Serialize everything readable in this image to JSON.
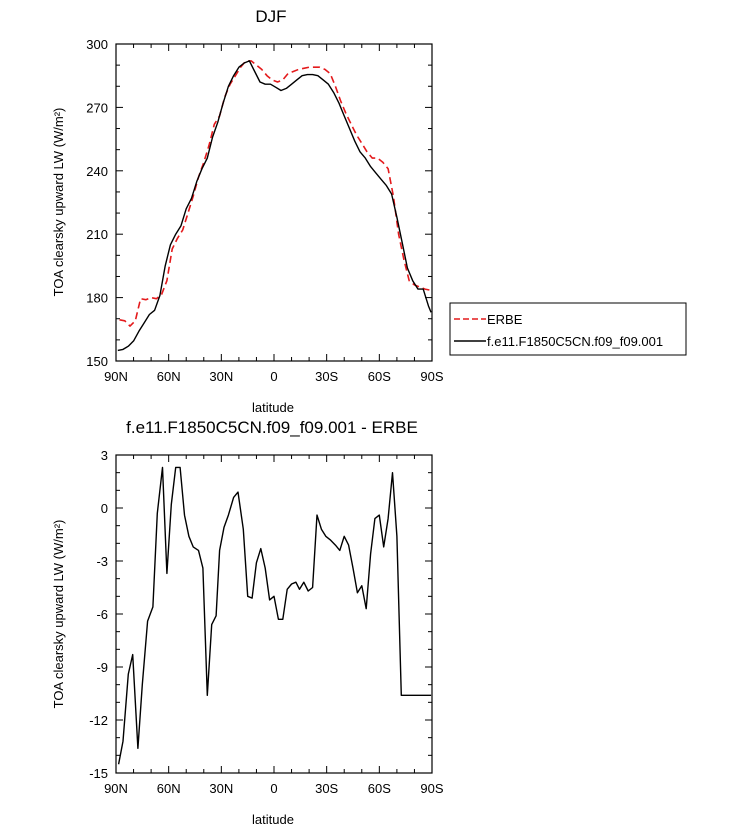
{
  "chart_data": [
    {
      "type": "line",
      "title": "DJF",
      "xlabel": "latitude",
      "ylabel": "TOA clearsky upward LW (W/m²)",
      "x_ticks": [
        {
          "value": -90,
          "label": "90N"
        },
        {
          "value": -60,
          "label": "60N"
        },
        {
          "value": -30,
          "label": "30N"
        },
        {
          "value": 0,
          "label": "0"
        },
        {
          "value": 30,
          "label": "30S"
        },
        {
          "value": 60,
          "label": "60S"
        },
        {
          "value": 90,
          "label": "90S"
        }
      ],
      "xlim": [
        -90,
        90
      ],
      "ylim": [
        150,
        300
      ],
      "y_ticks": [
        150,
        180,
        210,
        240,
        270,
        300
      ],
      "legend_position": "outside-right",
      "series": [
        {
          "name": "ERBE",
          "color": "#e41a1c",
          "dash": "dashed",
          "x": [
            -88,
            -85,
            -82,
            -79,
            -76,
            -73,
            -70,
            -67,
            -64,
            -61,
            -58,
            -55,
            -52,
            -49,
            -46,
            -43,
            -40,
            -37,
            -34,
            -31,
            -28,
            -25,
            -22,
            -19,
            -16,
            -13,
            -10,
            -7,
            -4,
            -1,
            2,
            5,
            8,
            11,
            14,
            17,
            20,
            23,
            26,
            29,
            32,
            35,
            38,
            41,
            44,
            47,
            50,
            53,
            56,
            59,
            62,
            65,
            68,
            71,
            74,
            77,
            80,
            83,
            86,
            89
          ],
          "y": [
            169.5,
            169,
            166.5,
            169,
            179.5,
            179,
            180,
            179.5,
            181.5,
            188,
            203,
            208,
            212,
            220,
            228,
            237,
            244,
            252,
            262,
            266,
            275,
            281,
            285,
            289,
            292,
            292,
            290,
            288,
            285,
            283,
            282,
            283,
            286,
            287,
            288,
            288.5,
            289,
            289,
            289,
            288,
            286,
            280,
            273,
            267,
            262,
            257,
            253,
            249,
            246,
            246,
            244,
            241,
            228,
            210,
            198,
            188,
            186,
            185,
            184,
            183.5
          ]
        },
        {
          "name": "f.e11.F1850C5CN.f09_f09.001",
          "color": "#000000",
          "dash": "solid",
          "x": [
            -89,
            -86,
            -83,
            -80,
            -77,
            -74,
            -71,
            -68,
            -65,
            -62,
            -59,
            -56,
            -53,
            -50,
            -47,
            -44,
            -41,
            -38,
            -35,
            -32,
            -29,
            -26,
            -23,
            -20,
            -17,
            -14,
            -11,
            -8,
            -5,
            -2,
            1,
            4,
            7,
            10,
            13,
            16,
            19,
            22,
            25,
            28,
            31,
            34,
            37,
            40,
            43,
            46,
            49,
            52,
            55,
            58,
            61,
            64,
            67,
            70,
            73,
            76,
            79,
            82,
            85,
            88,
            89.5
          ],
          "y": [
            155,
            155.5,
            157,
            159.5,
            164,
            168,
            172,
            174,
            181,
            195,
            205,
            210,
            214,
            222,
            227,
            235,
            241,
            246,
            256,
            263,
            272,
            280,
            285,
            289,
            291,
            292,
            287,
            282,
            281,
            281,
            279.5,
            278,
            279,
            281,
            283,
            285,
            285.5,
            285.5,
            285,
            283,
            281,
            277,
            272,
            266,
            260,
            254,
            249,
            246,
            242,
            239,
            236,
            233,
            229,
            218,
            206,
            194,
            188,
            184,
            184,
            176,
            173
          ]
        }
      ]
    },
    {
      "type": "line",
      "title": "f.e11.F1850C5CN.f09_f09.001 - ERBE",
      "xlabel": "latitude",
      "ylabel": "TOA clearsky upward LW (W/m²)",
      "x_ticks": [
        {
          "value": -90,
          "label": "90N"
        },
        {
          "value": -60,
          "label": "60N"
        },
        {
          "value": -30,
          "label": "30N"
        },
        {
          "value": 0,
          "label": "0"
        },
        {
          "value": 30,
          "label": "30S"
        },
        {
          "value": 60,
          "label": "60S"
        },
        {
          "value": 90,
          "label": "90S"
        }
      ],
      "xlim": [
        -90,
        90
      ],
      "ylim": [
        -15,
        3
      ],
      "y_ticks": [
        -15,
        -12,
        -9,
        -6,
        -3,
        0,
        3
      ],
      "series": [
        {
          "color": "#000000",
          "dash": "solid",
          "x": [
            -88.5,
            -86,
            -83,
            -80.5,
            -77.5,
            -75,
            -72,
            -69,
            -66.5,
            -63.5,
            -61,
            -58.5,
            -56,
            -53.5,
            -51,
            -48.5,
            -46,
            -43,
            -40.5,
            -38,
            -35.5,
            -33,
            -31,
            -28.5,
            -26,
            -23,
            -20.5,
            -17.5,
            -15,
            -12.5,
            -10,
            -7.5,
            -5,
            -2.5,
            0,
            2.5,
            5,
            7.5,
            10,
            12.5,
            14.5,
            17,
            19.5,
            22,
            24.5,
            27,
            29.5,
            32,
            35,
            37.5,
            40,
            42.5,
            45,
            47.5,
            50,
            52.5,
            55,
            57.5,
            60,
            62.5,
            65,
            67.5,
            70,
            72.5,
            75,
            77.5,
            80,
            82.5,
            85,
            87.5,
            89.5
          ],
          "y": [
            -14.5,
            -13.2,
            -9.4,
            -8.3,
            -13.6,
            -10,
            -6.4,
            -5.6,
            -0.3,
            2.3,
            -3.7,
            0.2,
            2.3,
            2.3,
            -0.4,
            -1.6,
            -2.2,
            -2.4,
            -3.4,
            -10.6,
            -6.6,
            -6.1,
            -2.4,
            -1.1,
            -0.4,
            0.6,
            0.9,
            -1.2,
            -5,
            -5.1,
            -3.1,
            -2.3,
            -3.4,
            -5.2,
            -5,
            -6.3,
            -6.3,
            -4.6,
            -4.3,
            -4.2,
            -4.6,
            -4.2,
            -4.7,
            -4.5,
            -0.4,
            -1.2,
            -1.6,
            -1.8,
            -2.1,
            -2.4,
            -1.6,
            -2.1,
            -3.4,
            -4.8,
            -4.4,
            -5.7,
            -2.6,
            -0.6,
            -0.4,
            -2.2,
            -0.6,
            2,
            -1.6,
            -10.6,
            -10.6,
            -10.6,
            -10.6,
            -10.6,
            -10.6,
            -10.6,
            -10.6
          ]
        }
      ]
    }
  ]
}
